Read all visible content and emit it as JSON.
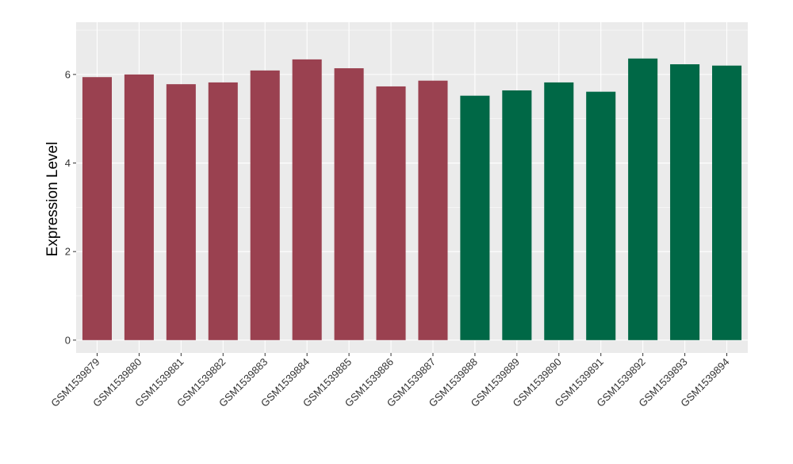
{
  "chart_data": {
    "type": "bar",
    "title": "",
    "xlabel": "",
    "ylabel": "Expression Level",
    "ylim": [
      -0.29,
      7.18
    ],
    "yticks": [
      0,
      2,
      4,
      6
    ],
    "grid": true,
    "legend": "none",
    "categories": [
      "GSM1539879",
      "GSM1539880",
      "GSM1539881",
      "GSM1539882",
      "GSM1539883",
      "GSM1539884",
      "GSM1539885",
      "GSM1539886",
      "GSM1539887",
      "GSM1539888",
      "GSM1539889",
      "GSM1539890",
      "GSM1539891",
      "GSM1539892",
      "GSM1539893",
      "GSM1539894"
    ],
    "values": [
      5.94,
      6.0,
      5.78,
      5.82,
      6.09,
      6.34,
      6.14,
      5.73,
      5.86,
      5.52,
      5.64,
      5.82,
      5.61,
      6.36,
      6.23,
      6.2
    ],
    "bar_colors": [
      "#9A4150",
      "#9A4150",
      "#9A4150",
      "#9A4150",
      "#9A4150",
      "#9A4150",
      "#9A4150",
      "#9A4150",
      "#9A4150",
      "#006846",
      "#006846",
      "#006846",
      "#006846",
      "#006846",
      "#006846",
      "#006846"
    ],
    "panel_background": "#EBEBEB",
    "gridline_color": "#FFFFFF"
  }
}
